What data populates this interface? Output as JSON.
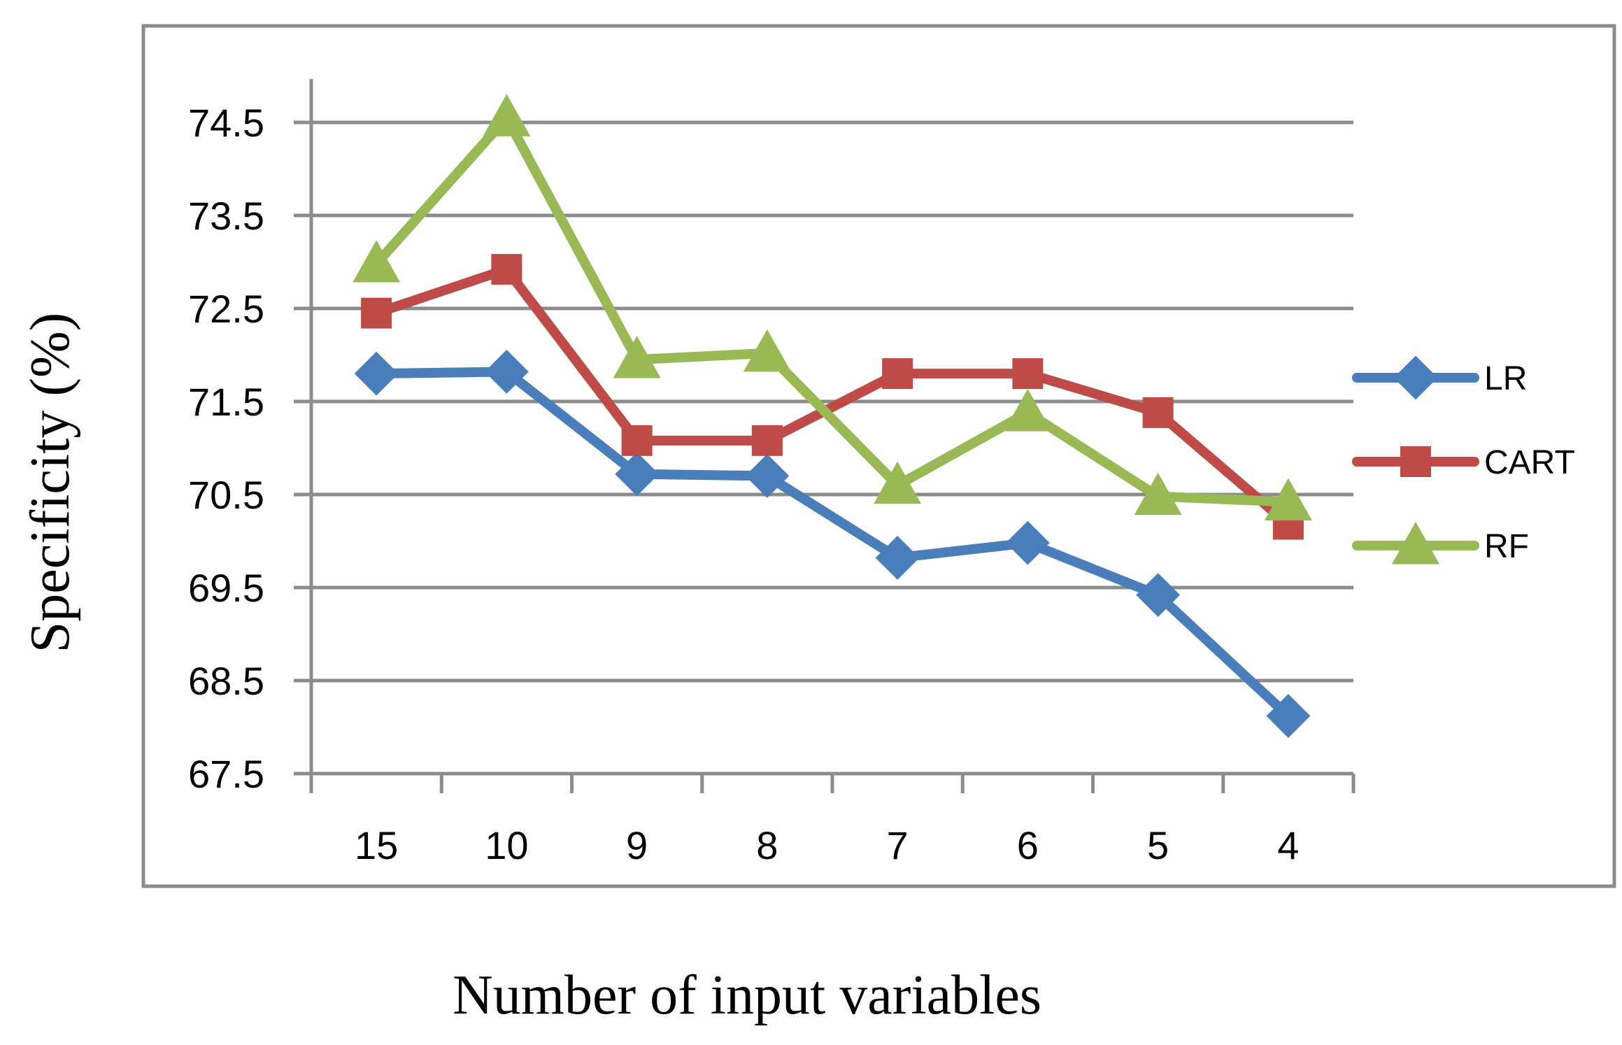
{
  "chart_data": {
    "type": "line",
    "title": "",
    "xlabel": "Number of input variables",
    "ylabel": "Specificity (%)",
    "categories": [
      "15",
      "10",
      "9",
      "8",
      "7",
      "6",
      "5",
      "4"
    ],
    "ylim": [
      67.5,
      74.5
    ],
    "yticks": [
      "67.5",
      "68.5",
      "69.5",
      "70.5",
      "71.5",
      "72.5",
      "73.5",
      "74.5"
    ],
    "grid": "horizontal",
    "legend_position": "right",
    "series": [
      {
        "name": "LR",
        "color": "#4a7ebb",
        "marker": "diamond",
        "values": [
          71.8,
          71.82,
          70.72,
          70.7,
          69.82,
          69.98,
          69.42,
          68.12
        ]
      },
      {
        "name": "CART",
        "color": "#be4b48",
        "marker": "square",
        "values": [
          72.45,
          72.92,
          71.08,
          71.08,
          71.8,
          71.8,
          71.38,
          70.18
        ]
      },
      {
        "name": "RF",
        "color": "#98b954",
        "marker": "triangle",
        "values": [
          72.98,
          74.55,
          71.95,
          72.02,
          70.6,
          71.38,
          70.48,
          70.42
        ]
      }
    ]
  }
}
